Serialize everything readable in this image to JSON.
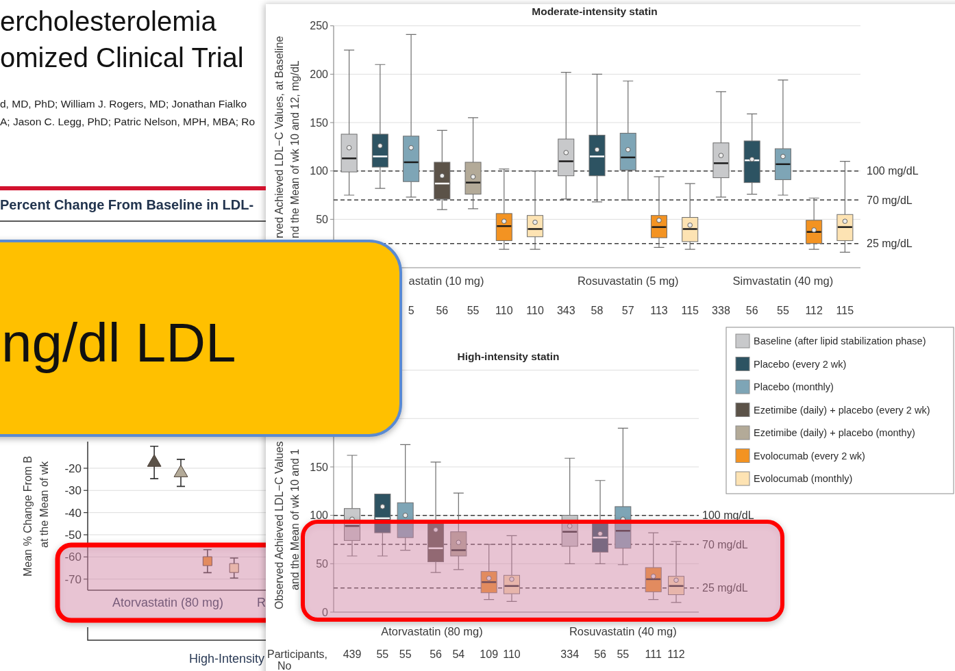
{
  "chart_data": [
    {
      "type": "other",
      "title": "ercholesterolemia\nomized Clinical Trial",
      "subtitle": "d, MD, PhD; William J. Rogers, MD; Jonathan Fialko\nA; Jason C. Legg, PhD; Patric Nelson, MPH, MBA; Ro",
      "annotations": [
        "ng/dl LDL"
      ]
    },
    {
      "type": "scatter",
      "title": "Percent Change From Baseline in LDL-",
      "ylabel": "Mean % Change From B\nat the Mean of wk",
      "categories": [
        null,
        null,
        null,
        null,
        null,
        null,
        null
      ],
      "ylim": [
        -75,
        -8
      ],
      "yticks": [
        -70,
        -60,
        -50,
        -40,
        -30,
        -20
      ],
      "grid": "y",
      "annotations": [
        "Atorvastatin (80 mg)",
        "R",
        "High-Intensity"
      ],
      "series": [
        {
          "color": "#5b5248",
          "marker": "triangle",
          "values": [
            null,
            null,
            -17.4,
            null,
            null,
            null,
            null
          ],
          "errors": [
            null,
            null,
            7.3,
            null,
            null,
            null,
            null
          ]
        },
        {
          "color": "#b3aa98",
          "marker": "triangle",
          "values": [
            null,
            null,
            null,
            -22.1,
            null,
            null,
            null
          ],
          "errors": [
            null,
            null,
            null,
            6.1,
            null,
            null,
            null
          ]
        },
        {
          "color": "#f39322",
          "marker": "square",
          "values": [
            null,
            null,
            null,
            null,
            -61.9,
            null,
            null
          ],
          "errors": [
            null,
            null,
            null,
            null,
            5.2,
            null,
            null
          ]
        },
        {
          "color": "#fde3b3",
          "marker": "square",
          "values": [
            null,
            null,
            null,
            null,
            null,
            -65.0,
            null
          ],
          "errors": [
            null,
            null,
            null,
            null,
            null,
            4.5,
            null
          ]
        }
      ]
    },
    {
      "type": "box",
      "title": "Moderate-intensity statin",
      "ylabel": "rved Achieved LDL−C Values, at Baseline\nnd the Mean of wk 10 and 12, mg/dL",
      "categories": [
        null,
        null,
        "5",
        "56",
        "55",
        "110",
        "110",
        "343",
        "58",
        "57",
        "113",
        "115",
        "338",
        "56",
        "55",
        "112",
        "115"
      ],
      "ylim": [
        0,
        250
      ],
      "yticks": [
        50,
        100,
        150,
        200,
        250
      ],
      "grid": "y",
      "ref_lines": [
        {
          "axis": "y",
          "value": 100,
          "label": "100 mg/dL",
          "line_style": "dashed"
        },
        {
          "axis": "y",
          "value": 70,
          "label": "70 mg/dL",
          "line_style": "dashed"
        },
        {
          "axis": "y",
          "value": 25,
          "label": "25 mg/dL",
          "line_style": "dashed"
        }
      ],
      "annotations": [
        "astatin (10 mg)",
        "Rosuvastatin (5 mg)",
        "Simvastatin (40 mg)"
      ],
      "series": [
        {
          "color": "#c8c9cb",
          "boxes": [
            {
              "low": 75,
              "q1": 99,
              "median": 113,
              "q3": 138,
              "high": 225,
              "mean": 124
            },
            null,
            null,
            null,
            null,
            null,
            null,
            {
              "low": 71,
              "q1": 95,
              "median": 110,
              "q3": 133,
              "high": 202,
              "mean": 119
            },
            null,
            null,
            null,
            null,
            {
              "low": 73,
              "q1": 93,
              "median": 108,
              "q3": 129,
              "high": 182,
              "mean": 116
            },
            null,
            null,
            null,
            null
          ]
        },
        {
          "color": "#2d5362",
          "boxes": [
            null,
            {
              "low": 82,
              "q1": 104,
              "median": 115,
              "q3": 138,
              "high": 210,
              "mean": 126
            },
            null,
            null,
            null,
            null,
            null,
            null,
            {
              "low": 68,
              "q1": 95,
              "median": 115,
              "q3": 137,
              "high": 200,
              "mean": 122
            },
            null,
            null,
            null,
            null,
            {
              "low": 76,
              "q1": 88,
              "median": 111,
              "q3": 131,
              "high": 159,
              "mean": 112
            },
            null,
            null,
            null
          ]
        },
        {
          "color": "#7ea5b6",
          "boxes": [
            null,
            null,
            {
              "low": 73,
              "q1": 89,
              "median": 109,
              "q3": 136,
              "high": 241,
              "mean": 124
            },
            null,
            null,
            null,
            null,
            null,
            null,
            {
              "low": 70,
              "q1": 101,
              "median": 114,
              "q3": 139,
              "high": 193,
              "mean": 122
            },
            null,
            null,
            null,
            null,
            {
              "low": 75,
              "q1": 91,
              "median": 107,
              "q3": 123,
              "high": 194,
              "mean": 115
            },
            null,
            null
          ]
        },
        {
          "color": "#5b5248",
          "boxes": [
            null,
            null,
            null,
            {
              "low": 60,
              "q1": 71,
              "median": 87,
              "q3": 109,
              "high": 142,
              "mean": 95
            },
            null,
            null,
            null,
            null,
            null,
            null,
            null,
            null,
            null,
            null,
            null,
            null,
            null
          ]
        },
        {
          "color": "#b3aa98",
          "boxes": [
            null,
            null,
            null,
            null,
            {
              "low": 61,
              "q1": 76,
              "median": 88,
              "q3": 109,
              "high": 155,
              "mean": 94
            },
            null,
            null,
            null,
            null,
            null,
            null,
            null,
            null,
            null,
            null,
            null,
            null
          ]
        },
        {
          "color": "#f39322",
          "boxes": [
            null,
            null,
            null,
            null,
            null,
            {
              "low": 19,
              "q1": 28,
              "median": 43,
              "q3": 56,
              "high": 102,
              "mean": 48
            },
            null,
            null,
            null,
            null,
            {
              "low": 21,
              "q1": 31,
              "median": 42,
              "q3": 54,
              "high": 94,
              "mean": 49
            },
            null,
            null,
            null,
            null,
            {
              "low": 19,
              "q1": 25,
              "median": 37,
              "q3": 49,
              "high": 72,
              "mean": 39
            },
            null
          ]
        },
        {
          "color": "#fde3b3",
          "boxes": [
            null,
            null,
            null,
            null,
            null,
            null,
            {
              "low": 19,
              "q1": 32,
              "median": 40,
              "q3": 54,
              "high": 100,
              "mean": 47
            },
            null,
            null,
            null,
            null,
            {
              "low": 19,
              "q1": 27,
              "median": 40,
              "q3": 52,
              "high": 87,
              "mean": 44
            },
            null,
            null,
            null,
            null,
            {
              "low": 16,
              "q1": 28,
              "median": 42,
              "q3": 55,
              "high": 110,
              "mean": 48
            }
          ]
        }
      ]
    },
    {
      "type": "box",
      "title": "High-intensity statin",
      "ylabel": "Observed Achieved LDL−C Values\nand the Mean of wk 10 and 1",
      "categories": [
        "439",
        "55",
        "55",
        "56",
        "54",
        "109",
        "110",
        "334",
        "56",
        "55",
        "111",
        "112"
      ],
      "ylim": [
        0,
        250
      ],
      "yticks": [
        0,
        50,
        100,
        150,
        {
          "value": 200,
          "label": null
        },
        {
          "value": 250,
          "label": null
        }
      ],
      "grid": "y",
      "legend": "right",
      "ref_lines": [
        {
          "axis": "y",
          "value": 100,
          "label": "100 mg/dL",
          "line_style": "dashed"
        },
        {
          "axis": "y",
          "value": 70,
          "label": "70 mg/dL",
          "line_style": "dashed"
        },
        {
          "axis": "y",
          "value": 25,
          "label": "25 mg/dL",
          "line_style": "dashed"
        }
      ],
      "annotations": [
        "Atorvastatin (80 mg)",
        "Rosuvastatin (40 mg)",
        "Participants,\nNo"
      ],
      "series": [
        {
          "name": "Baseline (after lipid stabilization phase)",
          "color": "#c8c9cb",
          "boxes": [
            {
              "low": 58,
              "q1": 74,
              "median": 89,
              "q3": 107,
              "high": 162,
              "mean": 96
            },
            null,
            null,
            null,
            null,
            null,
            null,
            {
              "low": 50,
              "q1": 68,
              "median": 83,
              "q3": 100,
              "high": 159,
              "mean": 89
            },
            null,
            null,
            null,
            null
          ]
        },
        {
          "name": "Placebo (every 2 wk)",
          "color": "#2d5362",
          "boxes": [
            null,
            {
              "low": 58,
              "q1": 82,
              "median": 97,
              "q3": 122,
              "high": null,
              "mean": 109
            },
            null,
            null,
            null,
            null,
            null,
            null,
            {
              "low": 50,
              "q1": 62,
              "median": 77,
              "q3": 95,
              "high": 136,
              "mean": 81
            },
            null,
            null,
            null
          ]
        },
        {
          "name": "Placebo (monthly)",
          "color": "#7ea5b6",
          "boxes": [
            null,
            null,
            {
              "low": 64,
              "q1": 77,
              "median": null,
              "q3": 113,
              "high": 173,
              "mean": 100
            },
            null,
            null,
            null,
            null,
            null,
            null,
            {
              "low": 49,
              "q1": 66,
              "median": 84,
              "q3": 109,
              "high": 190,
              "mean": 96
            },
            null,
            null
          ]
        },
        {
          "name": "Ezetimibe (daily) + placebo (every 2 wk)",
          "color": "#5b5248",
          "boxes": [
            null,
            null,
            null,
            {
              "low": 41,
              "q1": 52,
              "median": 66,
              "q3": 95,
              "high": 155,
              "mean": 85
            },
            null,
            null,
            null,
            null,
            null,
            null,
            null,
            null
          ]
        },
        {
          "name": "Ezetimibe (daily) + placebo (monthy)",
          "color": "#b3aa98",
          "boxes": [
            null,
            null,
            null,
            null,
            {
              "low": 44,
              "q1": 58,
              "median": 64,
              "q3": 83,
              "high": 123,
              "mean": 72
            },
            null,
            null,
            null,
            null,
            null,
            null,
            null
          ]
        },
        {
          "name": "Evolocumab (every 2 wk)",
          "color": "#f39322",
          "boxes": [
            null,
            null,
            null,
            null,
            null,
            {
              "low": 13,
              "q1": 20,
              "median": 31,
              "q3": 42,
              "high": 70,
              "mean": 35
            },
            null,
            null,
            null,
            null,
            {
              "low": 13,
              "q1": 21,
              "median": 34,
              "q3": 46,
              "high": 82,
              "mean": 37
            },
            null
          ]
        },
        {
          "name": "Evolocumab (monthly)",
          "color": "#fde3b3",
          "boxes": [
            null,
            null,
            null,
            null,
            null,
            null,
            {
              "low": 11,
              "q1": 19,
              "median": 27,
              "q3": 38,
              "high": 79,
              "mean": 34
            },
            null,
            null,
            null,
            null,
            {
              "low": 10,
              "q1": 18,
              "median": 27,
              "q3": 37,
              "high": 73,
              "mean": 33
            }
          ]
        }
      ]
    }
  ]
}
